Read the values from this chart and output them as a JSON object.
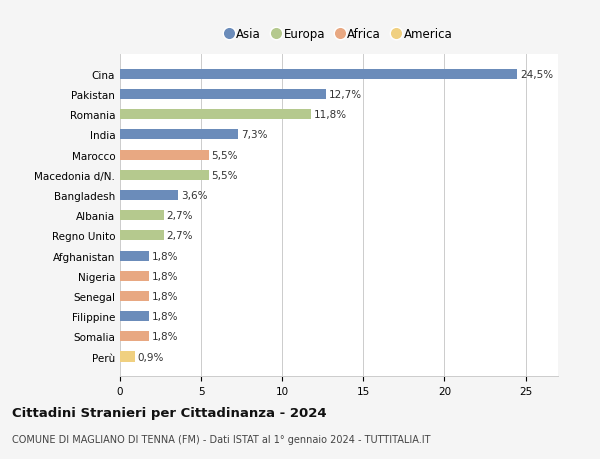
{
  "categories": [
    "Cina",
    "Pakistan",
    "Romania",
    "India",
    "Marocco",
    "Macedonia d/N.",
    "Bangladesh",
    "Albania",
    "Regno Unito",
    "Afghanistan",
    "Nigeria",
    "Senegal",
    "Filippine",
    "Somalia",
    "Perù"
  ],
  "values": [
    24.5,
    12.7,
    11.8,
    7.3,
    5.5,
    5.5,
    3.6,
    2.7,
    2.7,
    1.8,
    1.8,
    1.8,
    1.8,
    1.8,
    0.9
  ],
  "labels": [
    "24,5%",
    "12,7%",
    "11,8%",
    "7,3%",
    "5,5%",
    "5,5%",
    "3,6%",
    "2,7%",
    "2,7%",
    "1,8%",
    "1,8%",
    "1,8%",
    "1,8%",
    "1,8%",
    "0,9%"
  ],
  "continents": [
    "Asia",
    "Asia",
    "Europa",
    "Asia",
    "Africa",
    "Europa",
    "Asia",
    "Europa",
    "Europa",
    "Asia",
    "Africa",
    "Africa",
    "Asia",
    "Africa",
    "America"
  ],
  "colors": {
    "Asia": "#6b8cba",
    "Europa": "#b5c98e",
    "Africa": "#e8a882",
    "America": "#f0d080"
  },
  "title": "Cittadini Stranieri per Cittadinanza - 2024",
  "subtitle": "COMUNE DI MAGLIANO DI TENNA (FM) - Dati ISTAT al 1° gennaio 2024 - TUTTITALIA.IT",
  "xlim": [
    0,
    27
  ],
  "xticks": [
    0,
    5,
    10,
    15,
    20,
    25
  ],
  "background_color": "#f5f5f5",
  "bar_background": "#ffffff",
  "grid_color": "#cccccc",
  "bar_height": 0.5,
  "label_fontsize": 7.5,
  "tick_fontsize": 7.5,
  "legend_fontsize": 8.5,
  "title_fontsize": 9.5,
  "subtitle_fontsize": 7.0
}
